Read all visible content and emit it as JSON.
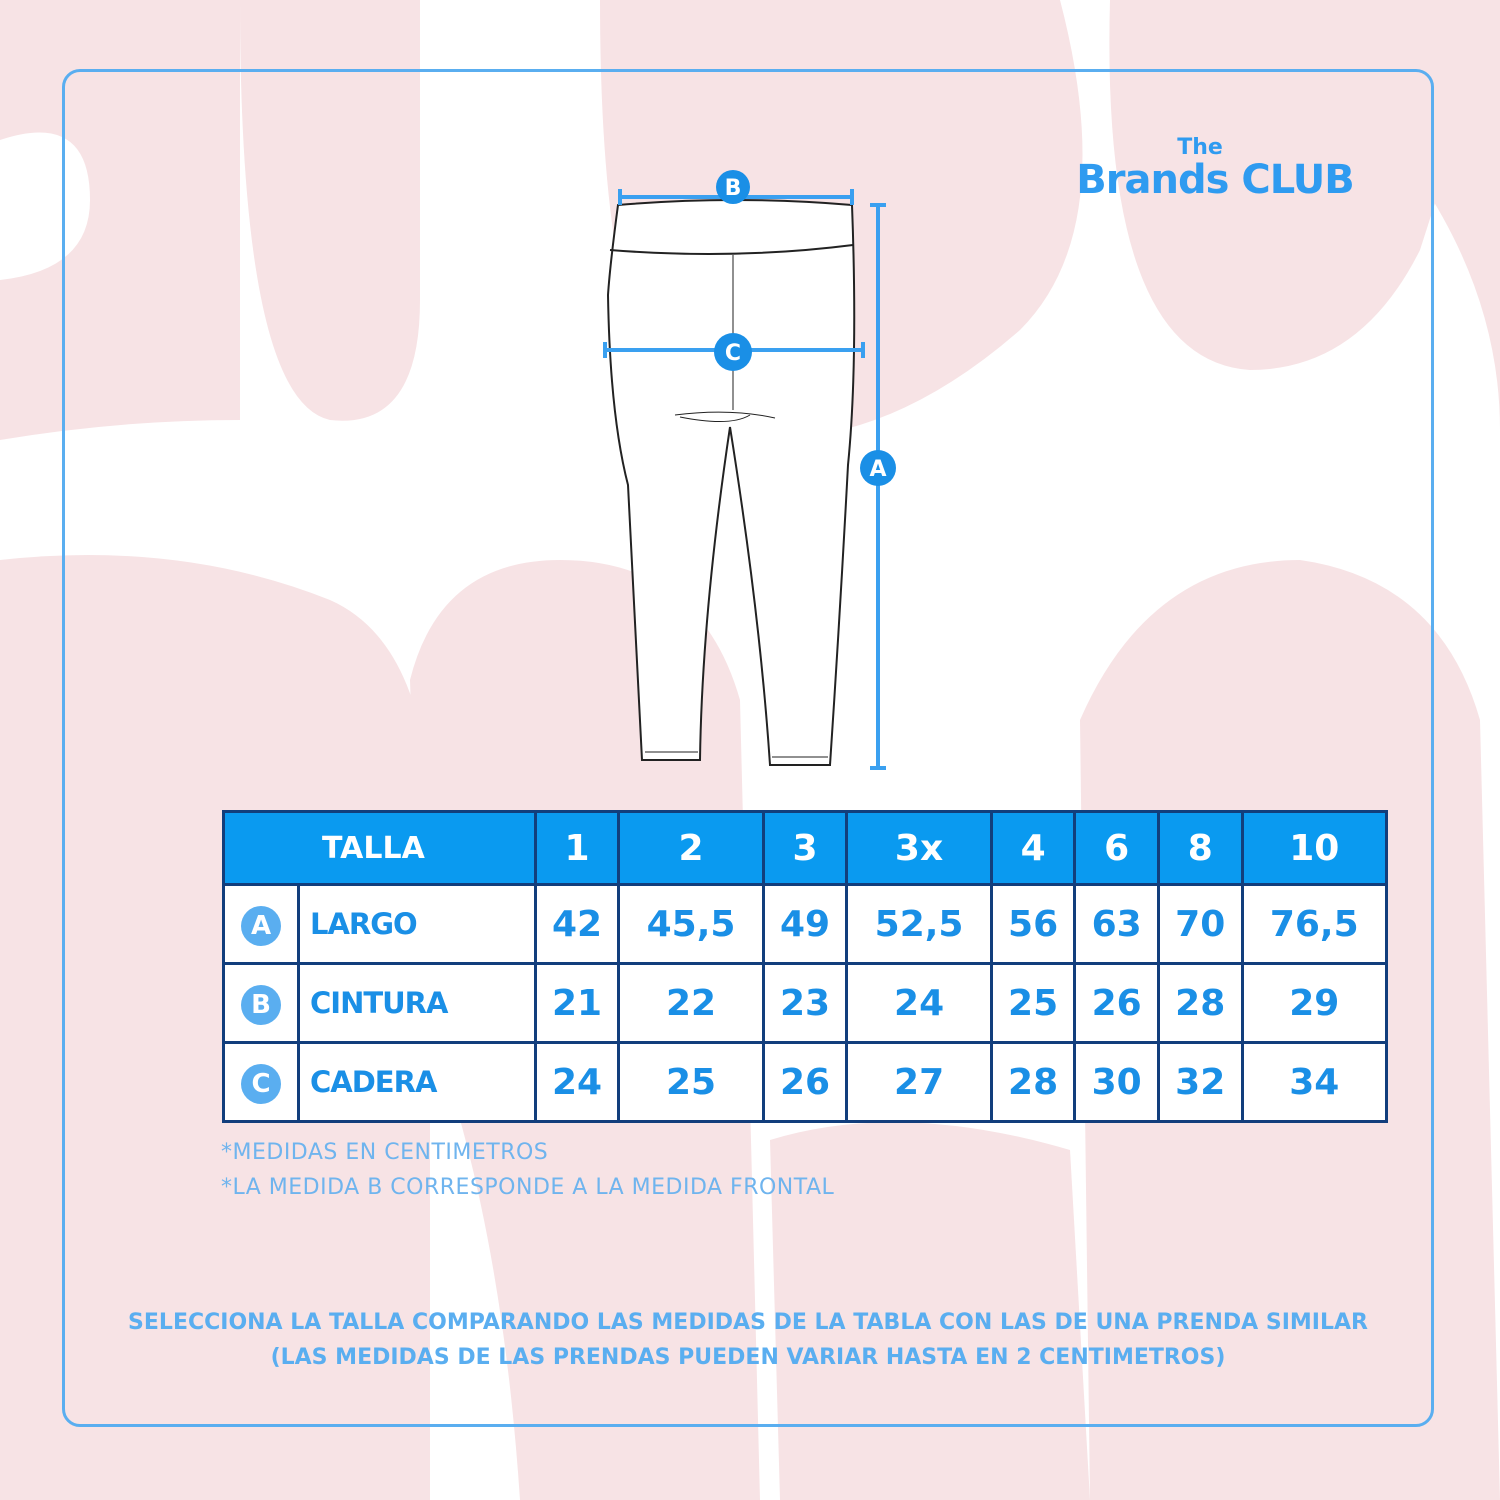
{
  "brand": {
    "line1": "The",
    "line2": "Brands CLUB"
  },
  "diagram": {
    "markers": [
      "A",
      "B",
      "C"
    ]
  },
  "colors": {
    "accent": "#0a9af0",
    "text_blue": "#1a8fe6",
    "border": "#123e7c",
    "background_shape": "#f7e3e5"
  },
  "table": {
    "header_label": "TALLA",
    "sizes": [
      "1",
      "2",
      "3",
      "3x",
      "4",
      "6",
      "8",
      "10"
    ],
    "rows": [
      {
        "marker": "A",
        "label": "LARGO",
        "values": [
          "42",
          "45,5",
          "49",
          "52,5",
          "56",
          "63",
          "70",
          "76,5"
        ]
      },
      {
        "marker": "B",
        "label": "CINTURA",
        "values": [
          "21",
          "22",
          "23",
          "24",
          "25",
          "26",
          "28",
          "29"
        ]
      },
      {
        "marker": "C",
        "label": "CADERA",
        "values": [
          "24",
          "25",
          "26",
          "27",
          "28",
          "30",
          "32",
          "34"
        ]
      }
    ]
  },
  "notes": [
    "*MEDIDAS EN CENTIMETROS",
    "*LA MEDIDA B CORRESPONDE A LA MEDIDA FRONTAL"
  ],
  "footer": [
    "SELECCIONA LA TALLA COMPARANDO LAS MEDIDAS DE LA TABLA CON LAS DE UNA PRENDA SIMILAR",
    "(LAS MEDIDAS DE LAS PRENDAS PUEDEN VARIAR HASTA EN 2 CENTIMETROS)"
  ]
}
